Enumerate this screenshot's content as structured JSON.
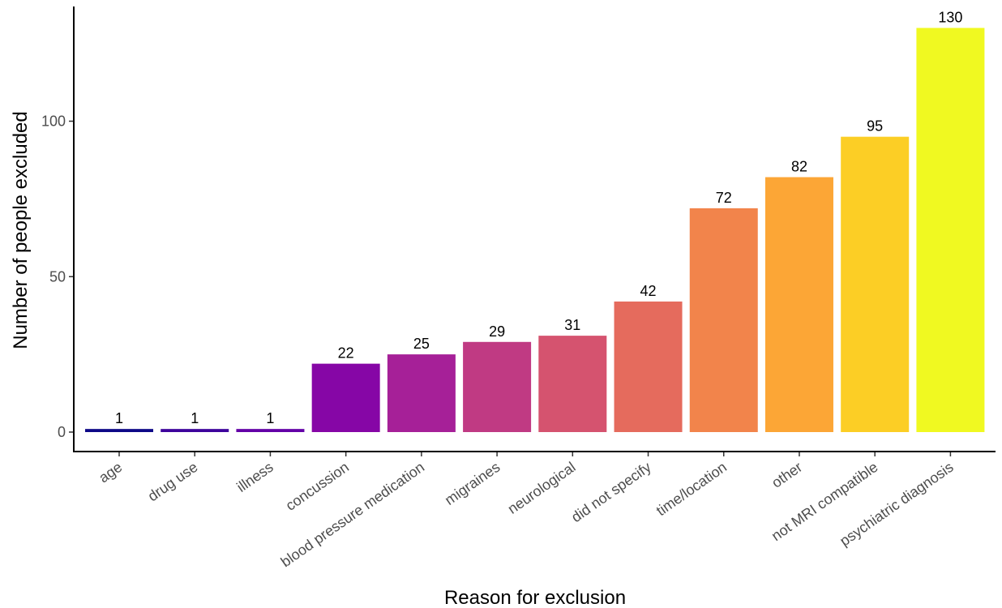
{
  "chart_data": {
    "type": "bar",
    "title": "",
    "xlabel": "Reason for exclusion",
    "ylabel": "Number of people excluded",
    "categories": [
      "age",
      "drug use",
      "illness",
      "concussion",
      "blood pressure medication",
      "migraines",
      "neurological",
      "did not specify",
      "time/location",
      "other",
      "not MRI compatible",
      "psychiatric diagnosis"
    ],
    "values": [
      1,
      1,
      1,
      22,
      25,
      29,
      31,
      42,
      72,
      82,
      95,
      130
    ],
    "colors": [
      "#0D0887",
      "#3E049C",
      "#6300A7",
      "#8606A6",
      "#A62098",
      "#C03A83",
      "#D5536F",
      "#E56B5D",
      "#F2844B",
      "#FCA636",
      "#FCCE25",
      "#F0F921"
    ],
    "ylim": [
      0,
      135
    ],
    "yticks": [
      0,
      50,
      100
    ],
    "ytick_labels": [
      "0",
      "50",
      "100"
    ],
    "grid": false,
    "legend": "none",
    "data_labels": true
  }
}
